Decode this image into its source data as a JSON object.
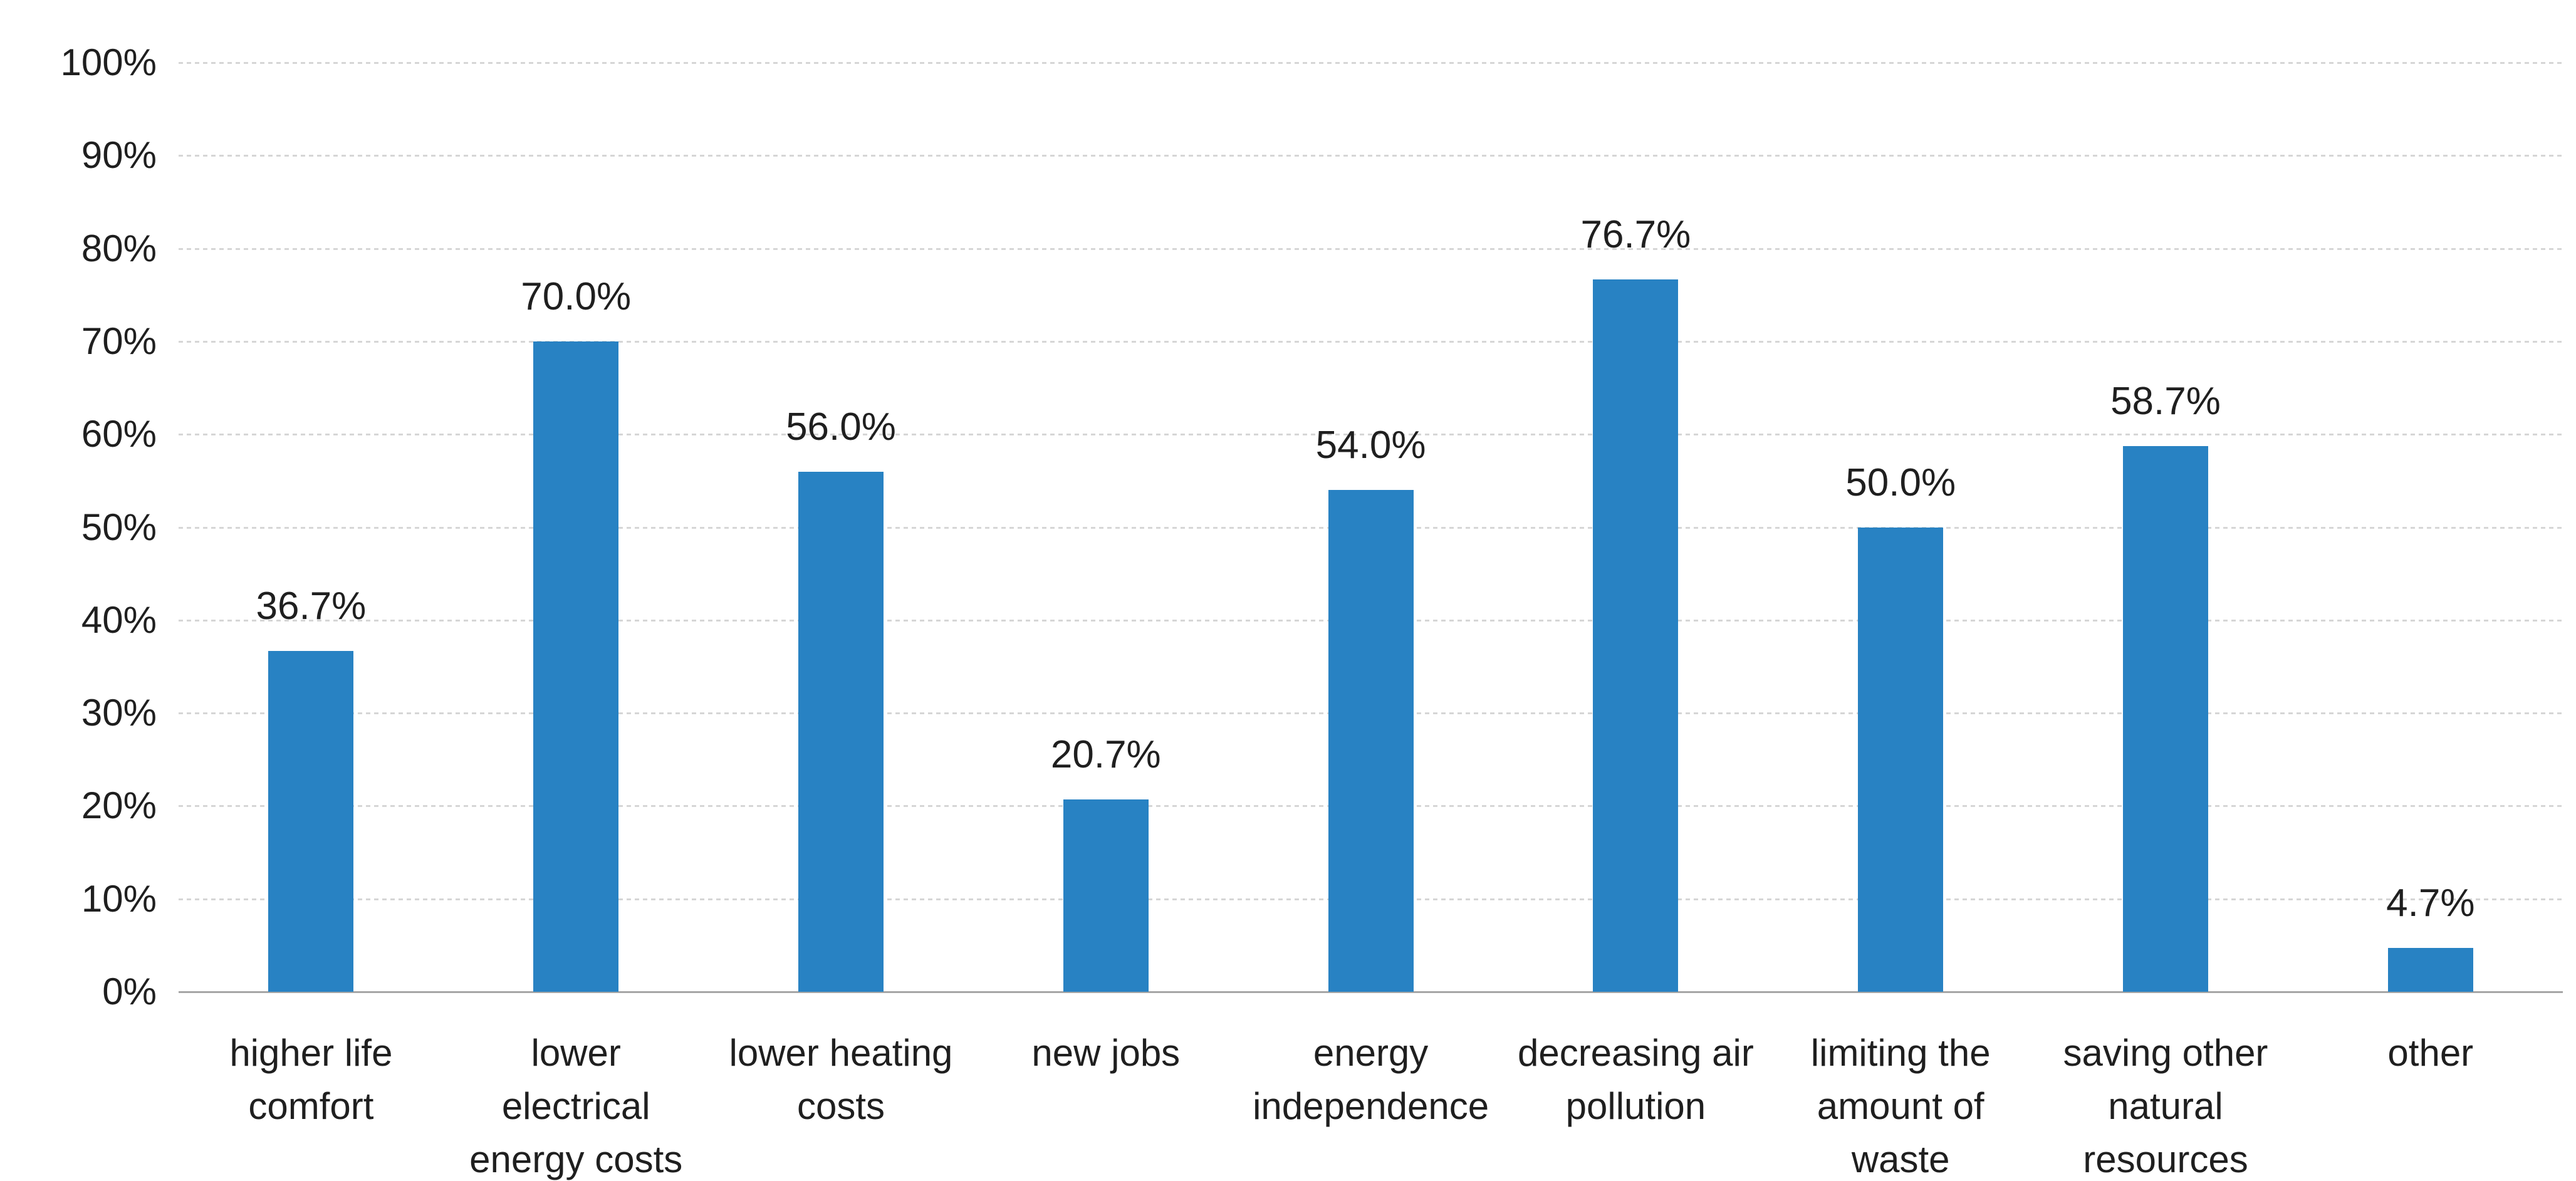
{
  "chart_data": {
    "type": "bar",
    "title": "",
    "xlabel": "",
    "ylabel": "",
    "categories": [
      "higher life comfort",
      "lower electrical energy costs",
      "lower heating costs",
      "new jobs",
      "energy independence",
      "decreasing air pollution",
      "limiting the amount of waste",
      "saving other natural resources",
      "other"
    ],
    "values": [
      36.7,
      70.0,
      56.0,
      20.7,
      54.0,
      76.7,
      50.0,
      58.7,
      4.7
    ],
    "value_labels": [
      "36.7%",
      "70.0%",
      "56.0%",
      "20.7%",
      "54.0%",
      "76.7%",
      "50.0%",
      "58.7%",
      "4.7%"
    ],
    "yticks": [
      "100%",
      "90%",
      "80%",
      "70%",
      "60%",
      "50%",
      "40%",
      "30%",
      "20%",
      "10%",
      "0%"
    ],
    "ylim": [
      0,
      100
    ],
    "ytick_step": 10,
    "grid": "horizontal-dotted",
    "legend": "none",
    "bar_color": "#2882c3",
    "gridline_color": "#d6d6d6",
    "axis_line_color": "#a6a6a6",
    "text_color": "#1f1f1f",
    "background_color": "#ffffff"
  }
}
